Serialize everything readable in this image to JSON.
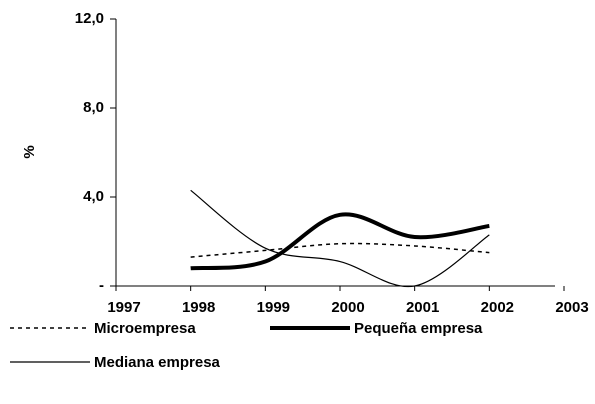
{
  "chart_data": {
    "type": "line",
    "y_label": "%",
    "x": [
      1998,
      1999,
      2000,
      2001,
      2002
    ],
    "series": [
      {
        "name": "Microempresa",
        "color": "#000000",
        "dash": true,
        "width": 1.5,
        "values": [
          1.3,
          1.6,
          1.9,
          1.8,
          1.5
        ]
      },
      {
        "name": "Pequeña empresa",
        "color": "#000000",
        "dash": false,
        "width": 4,
        "values": [
          0.8,
          1.1,
          3.2,
          2.2,
          2.7
        ]
      },
      {
        "name": "Mediana empresa",
        "color": "#000000",
        "dash": false,
        "width": 1.2,
        "values": [
          4.3,
          1.7,
          1.1,
          0,
          2.3
        ]
      }
    ],
    "xlim": [
      1997,
      2003
    ],
    "xticks": [
      1997,
      1998,
      1999,
      2000,
      2001,
      2002,
      2003
    ],
    "ylim": [
      0,
      12
    ],
    "yticks": [
      {
        "value": 0,
        "label": "-"
      },
      {
        "value": 4,
        "label": "4,0"
      },
      {
        "value": 8,
        "label": "8,0"
      },
      {
        "value": 12,
        "label": "12,0"
      }
    ],
    "legend": "bottom"
  }
}
